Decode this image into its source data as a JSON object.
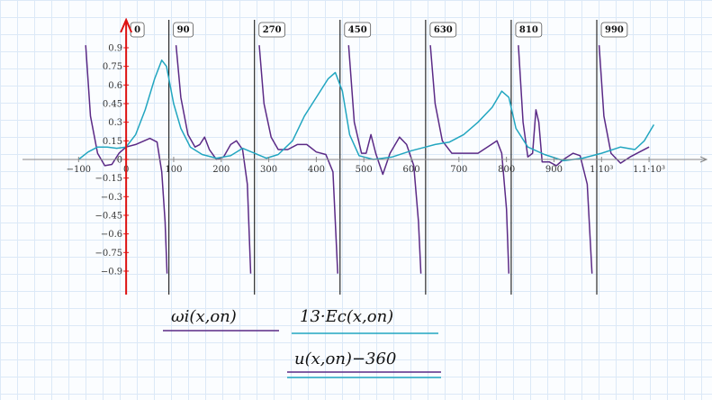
{
  "chart_data": {
    "type": "line",
    "x_label": "u(x,on)−360",
    "xlim": [
      -218,
      1221
    ],
    "ylim": [
      -1.089,
      1.125
    ],
    "xticks": [
      {
        "value": -100,
        "label": "−100"
      },
      0,
      100,
      200,
      300,
      400,
      500,
      600,
      700,
      800,
      900,
      {
        "value": 1000,
        "label": "1·10³"
      },
      {
        "value": 1100,
        "label": "1.1·10³"
      }
    ],
    "yticks": [
      0.9,
      0.75,
      0.6,
      0.45,
      0.3,
      0.15,
      0,
      {
        "value": -0.15,
        "label": "−0.15"
      },
      {
        "value": -0.3,
        "label": "−0.3"
      },
      {
        "value": -0.45,
        "label": "−0.45"
      },
      {
        "value": -0.6,
        "label": "−0.6"
      },
      {
        "value": -0.75,
        "label": "−0.75"
      },
      {
        "value": -0.9,
        "label": "−0.9"
      }
    ],
    "markers": [
      0,
      90,
      270,
      450,
      630,
      810,
      990
    ],
    "marker_color": "#000000",
    "series": [
      {
        "name": "ωi(x,on)",
        "color": "#5b2a86",
        "x": [
          -85,
          -75,
          -60,
          -45,
          -30,
          -15,
          0,
          20,
          50,
          65,
          75,
          82,
          86,
          95,
          105,
          115,
          130,
          145,
          155,
          165,
          175,
          190,
          205,
          220,
          232,
          245,
          255,
          262,
          270,
          280,
          290,
          305,
          320,
          340,
          360,
          380,
          400,
          420,
          435,
          445,
          455,
          468,
          480,
          495,
          505,
          515,
          525,
          540,
          555,
          575,
          590,
          605,
          615,
          620,
          630,
          640,
          650,
          665,
          685,
          710,
          740,
          760,
          780,
          790,
          800,
          805,
          815,
          825,
          835,
          845,
          855,
          862,
          868,
          875,
          890,
          905,
          920,
          940,
          955,
          970,
          980,
          990,
          995,
          1005,
          1020,
          1040,
          1060,
          1080,
          1100
        ],
        "values": [
          0.92,
          0.35,
          0.05,
          -0.05,
          -0.04,
          0.05,
          0.1,
          0.12,
          0.17,
          0.14,
          -0.1,
          -0.5,
          -0.92,
          null,
          0.92,
          0.5,
          0.2,
          0.1,
          0.12,
          0.18,
          0.08,
          0.0,
          0.02,
          0.12,
          0.15,
          0.08,
          -0.2,
          -0.92,
          null,
          0.92,
          0.45,
          0.18,
          0.08,
          0.08,
          0.12,
          0.12,
          0.06,
          0.04,
          -0.1,
          -0.92,
          null,
          0.92,
          0.3,
          0.05,
          0.05,
          0.2,
          0.05,
          -0.12,
          0.05,
          0.18,
          0.12,
          -0.05,
          -0.5,
          -0.92,
          null,
          0.92,
          0.45,
          0.15,
          0.05,
          0.05,
          0.05,
          0.1,
          0.15,
          0.05,
          -0.4,
          -0.92,
          null,
          0.92,
          0.3,
          0.02,
          0.05,
          0.4,
          0.3,
          -0.02,
          -0.02,
          -0.05,
          0,
          0.05,
          0.03,
          -0.2,
          -0.92,
          null,
          0.92,
          0.35,
          0.05,
          -0.03,
          0.02,
          0.06,
          0.1
        ]
      },
      {
        "name": "13·Ec(x,on)",
        "color": "#22a6c0",
        "x": [
          -100,
          -80,
          -60,
          -40,
          -20,
          0,
          20,
          40,
          60,
          75,
          85,
          100,
          115,
          135,
          160,
          190,
          220,
          245,
          270,
          295,
          320,
          350,
          375,
          400,
          425,
          440,
          455,
          470,
          490,
          520,
          560,
          600,
          630,
          650,
          680,
          710,
          740,
          770,
          790,
          805,
          820,
          845,
          880,
          920,
          960,
          1000,
          1040,
          1070,
          1090,
          1110
        ],
        "values": [
          0,
          0.06,
          0.1,
          0.1,
          0.09,
          0.1,
          0.2,
          0.4,
          0.65,
          0.8,
          0.75,
          0.45,
          0.25,
          0.1,
          0.04,
          0.01,
          0.03,
          0.09,
          0.05,
          0.01,
          0.04,
          0.15,
          0.35,
          0.5,
          0.65,
          0.7,
          0.55,
          0.2,
          0.03,
          0,
          0.02,
          0.07,
          0.1,
          0.12,
          0.14,
          0.2,
          0.3,
          0.42,
          0.55,
          0.5,
          0.25,
          0.1,
          0.04,
          -0.01,
          0.01,
          0.05,
          0.1,
          0.08,
          0.15,
          0.28
        ]
      }
    ]
  }
}
